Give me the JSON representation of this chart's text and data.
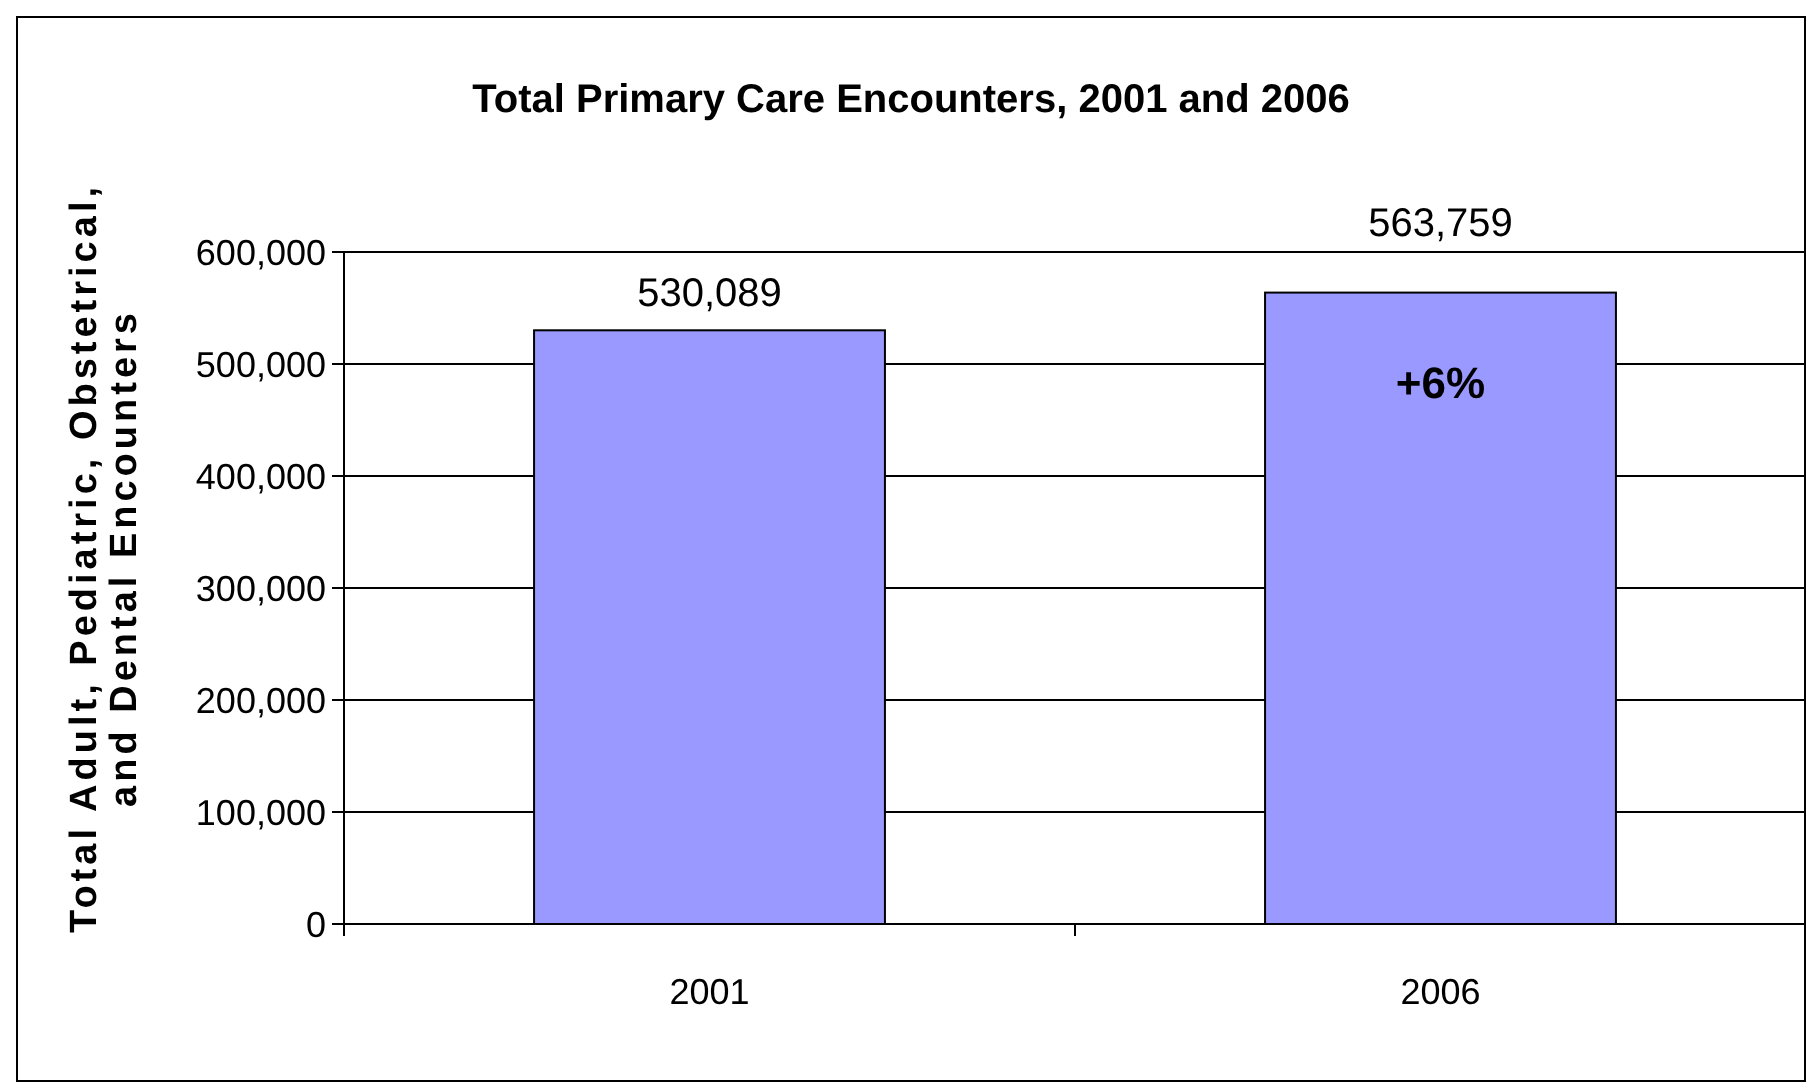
{
  "chart_data": {
    "type": "bar",
    "title": "Total Primary Care Encounters, 2001 and 2006",
    "ylabel": "Total Adult, Pediatric, Obstetrical,\nand Dental Encounters",
    "categories": [
      "2001",
      "2006"
    ],
    "values": [
      530089,
      563759
    ],
    "color": "#9999ff",
    "ylim": [
      0,
      600000
    ],
    "yticks": [
      {
        "value": 0,
        "label": "0"
      },
      {
        "value": 100000,
        "label": "100,000"
      },
      {
        "value": 200000,
        "label": "200,000"
      },
      {
        "value": 300000,
        "label": "300,000"
      },
      {
        "value": 400000,
        "label": "400,000"
      },
      {
        "value": 500000,
        "label": "500,000"
      },
      {
        "value": 600000,
        "label": "600,000"
      }
    ],
    "grid": "y",
    "value_labels": [
      "530,089",
      "563,759"
    ],
    "annotations": [
      "+6%"
    ]
  }
}
